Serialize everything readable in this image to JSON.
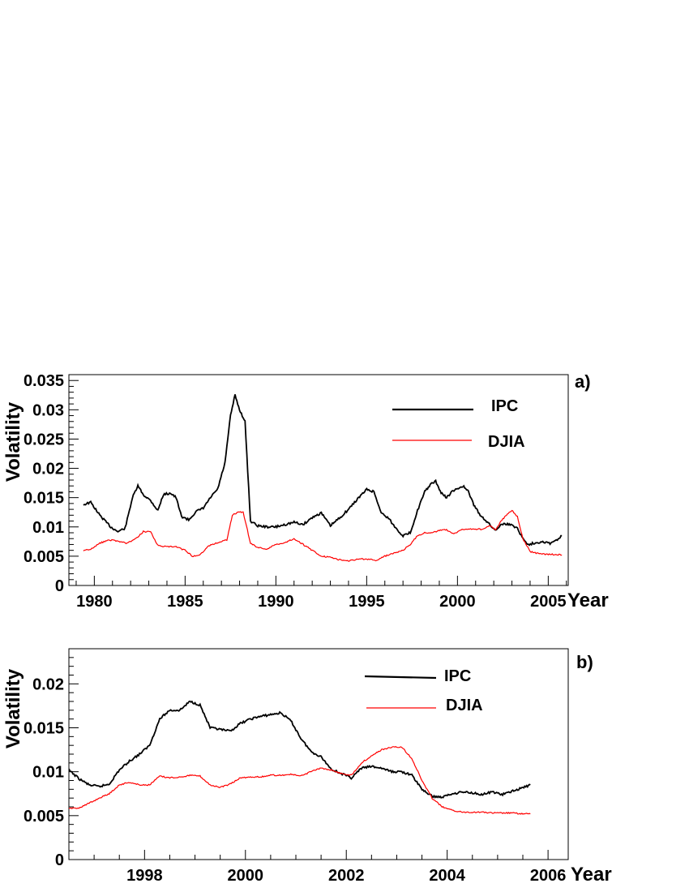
{
  "chart_data": [
    {
      "type": "line",
      "panel_label": "a)",
      "xlabel": "Year",
      "ylabel": "Volatility",
      "xlim": [
        1978.6,
        2006.1
      ],
      "ylim": [
        0,
        0.036
      ],
      "x_ticks": [
        1980,
        1985,
        1990,
        1995,
        2000,
        2005
      ],
      "x_tick_labels": [
        "1980",
        "1985",
        "1990",
        "1995",
        "2000",
        "2005"
      ],
      "y_ticks": [
        0,
        0.005,
        0.01,
        0.015,
        0.02,
        0.025,
        0.03,
        0.035
      ],
      "y_tick_labels": [
        "0",
        "0.005",
        "0.01",
        "0.015",
        "0.02",
        "0.025",
        "0.03",
        "0.035"
      ],
      "grid": false,
      "legend_position": "top-right",
      "series": [
        {
          "name": "IPC",
          "color": "#000000",
          "x": [
            1979.4,
            1979.8,
            1980.3,
            1980.9,
            1981.3,
            1981.7,
            1982.1,
            1982.4,
            1982.7,
            1983.1,
            1983.5,
            1983.8,
            1984.2,
            1984.5,
            1984.8,
            1985.2,
            1985.6,
            1986.0,
            1986.4,
            1986.8,
            1987.2,
            1987.5,
            1987.75,
            1988.0,
            1988.3,
            1988.6,
            1989.0,
            1989.5,
            1990.0,
            1990.5,
            1991.0,
            1991.5,
            1992.0,
            1992.5,
            1993.0,
            1993.5,
            1994.0,
            1994.5,
            1995.0,
            1995.4,
            1995.8,
            1996.2,
            1996.6,
            1997.0,
            1997.4,
            1997.8,
            1998.2,
            1998.5,
            1998.8,
            1999.1,
            1999.4,
            1999.7,
            2000.0,
            2000.3,
            2000.6,
            2000.9,
            2001.2,
            2001.5,
            2001.8,
            2002.1,
            2002.4,
            2002.7,
            2003.0,
            2003.3,
            2003.6,
            2003.9,
            2004.3,
            2004.7,
            2005.1,
            2005.5,
            2005.75
          ],
          "y": [
            0.0138,
            0.0142,
            0.012,
            0.01,
            0.0092,
            0.0098,
            0.015,
            0.017,
            0.0155,
            0.0145,
            0.0128,
            0.0155,
            0.0158,
            0.015,
            0.0118,
            0.0112,
            0.0126,
            0.0132,
            0.015,
            0.0165,
            0.021,
            0.029,
            0.0325,
            0.03,
            0.028,
            0.011,
            0.0102,
            0.01,
            0.01,
            0.0104,
            0.0108,
            0.0104,
            0.0116,
            0.0124,
            0.0102,
            0.0115,
            0.013,
            0.0148,
            0.0164,
            0.016,
            0.0124,
            0.0115,
            0.0098,
            0.0085,
            0.009,
            0.0128,
            0.016,
            0.0172,
            0.0178,
            0.0158,
            0.015,
            0.016,
            0.0165,
            0.017,
            0.016,
            0.0138,
            0.0122,
            0.0113,
            0.0103,
            0.0094,
            0.0105,
            0.0105,
            0.0103,
            0.0098,
            0.008,
            0.007,
            0.0073,
            0.0075,
            0.0072,
            0.0078,
            0.0085
          ]
        },
        {
          "name": "DJIA",
          "color": "#ff0000",
          "x": [
            1979.4,
            1979.8,
            1980.3,
            1980.8,
            1981.3,
            1981.8,
            1982.3,
            1982.7,
            1983.1,
            1983.5,
            1984.0,
            1984.5,
            1985.0,
            1985.4,
            1985.8,
            1986.3,
            1986.8,
            1987.3,
            1987.6,
            1987.9,
            1988.2,
            1988.6,
            1989.0,
            1989.5,
            1990.0,
            1990.5,
            1991.0,
            1991.5,
            1992.0,
            1992.5,
            1993.0,
            1993.5,
            1994.0,
            1994.5,
            1995.0,
            1995.5,
            1996.0,
            1996.5,
            1997.0,
            1997.4,
            1997.8,
            1998.2,
            1998.6,
            1999.0,
            1999.4,
            1999.8,
            2000.2,
            2000.6,
            2001.0,
            2001.4,
            2001.8,
            2002.1,
            2002.4,
            2002.7,
            2003.0,
            2003.3,
            2003.6,
            2004.0,
            2004.5,
            2005.0,
            2005.5,
            2005.75
          ],
          "y": [
            0.006,
            0.0062,
            0.0072,
            0.0078,
            0.0076,
            0.0072,
            0.008,
            0.0092,
            0.0092,
            0.0068,
            0.0066,
            0.0066,
            0.006,
            0.005,
            0.0052,
            0.0068,
            0.0073,
            0.0078,
            0.012,
            0.0125,
            0.0125,
            0.0072,
            0.0065,
            0.0062,
            0.007,
            0.0073,
            0.008,
            0.007,
            0.006,
            0.005,
            0.0048,
            0.0044,
            0.0042,
            0.0045,
            0.0045,
            0.0043,
            0.005,
            0.0055,
            0.006,
            0.007,
            0.0085,
            0.009,
            0.009,
            0.0094,
            0.0095,
            0.0088,
            0.0095,
            0.0096,
            0.0096,
            0.0096,
            0.0102,
            0.0095,
            0.011,
            0.012,
            0.0128,
            0.0118,
            0.008,
            0.0058,
            0.0054,
            0.0053,
            0.0053,
            0.0052
          ]
        }
      ]
    },
    {
      "type": "line",
      "panel_label": "b)",
      "xlabel": "Year",
      "ylabel": "Volatility",
      "xlim": [
        1996.5,
        2006.4
      ],
      "ylim": [
        0,
        0.024
      ],
      "x_ticks": [
        1998,
        2000,
        2002,
        2004,
        2006
      ],
      "x_tick_labels": [
        "1998",
        "2000",
        "2002",
        "2004",
        "2006"
      ],
      "y_ticks": [
        0,
        0.005,
        0.01,
        0.015,
        0.02
      ],
      "y_tick_labels": [
        "0",
        "0.005",
        "0.01",
        "0.015",
        "0.02"
      ],
      "grid": false,
      "legend_position": "top-right",
      "series": [
        {
          "name": "IPC",
          "color": "#000000",
          "x": [
            1996.5,
            1996.7,
            1996.9,
            1997.1,
            1997.3,
            1997.5,
            1997.7,
            1997.9,
            1998.1,
            1998.3,
            1998.5,
            1998.7,
            1998.9,
            1999.1,
            1999.3,
            1999.5,
            1999.7,
            1999.9,
            2000.1,
            2000.3,
            2000.5,
            2000.7,
            2000.9,
            2001.1,
            2001.3,
            2001.5,
            2001.7,
            2001.9,
            2002.1,
            2002.3,
            2002.5,
            2002.7,
            2002.9,
            2003.1,
            2003.3,
            2003.5,
            2003.7,
            2003.9,
            2004.1,
            2004.3,
            2004.5,
            2004.7,
            2004.9,
            2005.1,
            2005.3,
            2005.5,
            2005.65
          ],
          "y": [
            0.0102,
            0.0092,
            0.0085,
            0.0083,
            0.0086,
            0.0102,
            0.0112,
            0.012,
            0.013,
            0.016,
            0.017,
            0.017,
            0.018,
            0.0176,
            0.015,
            0.0148,
            0.0146,
            0.0155,
            0.016,
            0.0163,
            0.0165,
            0.0167,
            0.0158,
            0.0138,
            0.0123,
            0.0117,
            0.0103,
            0.0098,
            0.0093,
            0.0104,
            0.0106,
            0.0104,
            0.01,
            0.01,
            0.0096,
            0.008,
            0.0072,
            0.0071,
            0.0075,
            0.0077,
            0.0076,
            0.0074,
            0.0077,
            0.0074,
            0.0078,
            0.0082,
            0.0085
          ]
        },
        {
          "name": "DJIA",
          "color": "#ff0000",
          "x": [
            1996.5,
            1996.7,
            1996.9,
            1997.1,
            1997.3,
            1997.5,
            1997.7,
            1997.9,
            1998.1,
            1998.3,
            1998.5,
            1998.7,
            1998.9,
            1999.1,
            1999.3,
            1999.5,
            1999.7,
            1999.9,
            2000.1,
            2000.3,
            2000.5,
            2000.7,
            2000.9,
            2001.1,
            2001.3,
            2001.5,
            2001.7,
            2001.9,
            2002.1,
            2002.3,
            2002.5,
            2002.7,
            2002.9,
            2003.1,
            2003.3,
            2003.5,
            2003.7,
            2003.9,
            2004.1,
            2004.3,
            2004.5,
            2004.7,
            2004.9,
            2005.1,
            2005.3,
            2005.5,
            2005.65
          ],
          "y": [
            0.0058,
            0.0059,
            0.0064,
            0.007,
            0.0075,
            0.0085,
            0.0088,
            0.0085,
            0.0085,
            0.0095,
            0.0093,
            0.0094,
            0.0096,
            0.0095,
            0.0085,
            0.0082,
            0.0086,
            0.0093,
            0.0094,
            0.0094,
            0.0096,
            0.0096,
            0.0097,
            0.0095,
            0.01,
            0.0104,
            0.0102,
            0.0098,
            0.0096,
            0.011,
            0.0118,
            0.0125,
            0.0128,
            0.0128,
            0.0115,
            0.009,
            0.007,
            0.006,
            0.0056,
            0.0054,
            0.0054,
            0.0054,
            0.0053,
            0.0053,
            0.0053,
            0.0052,
            0.0052
          ]
        }
      ]
    }
  ]
}
